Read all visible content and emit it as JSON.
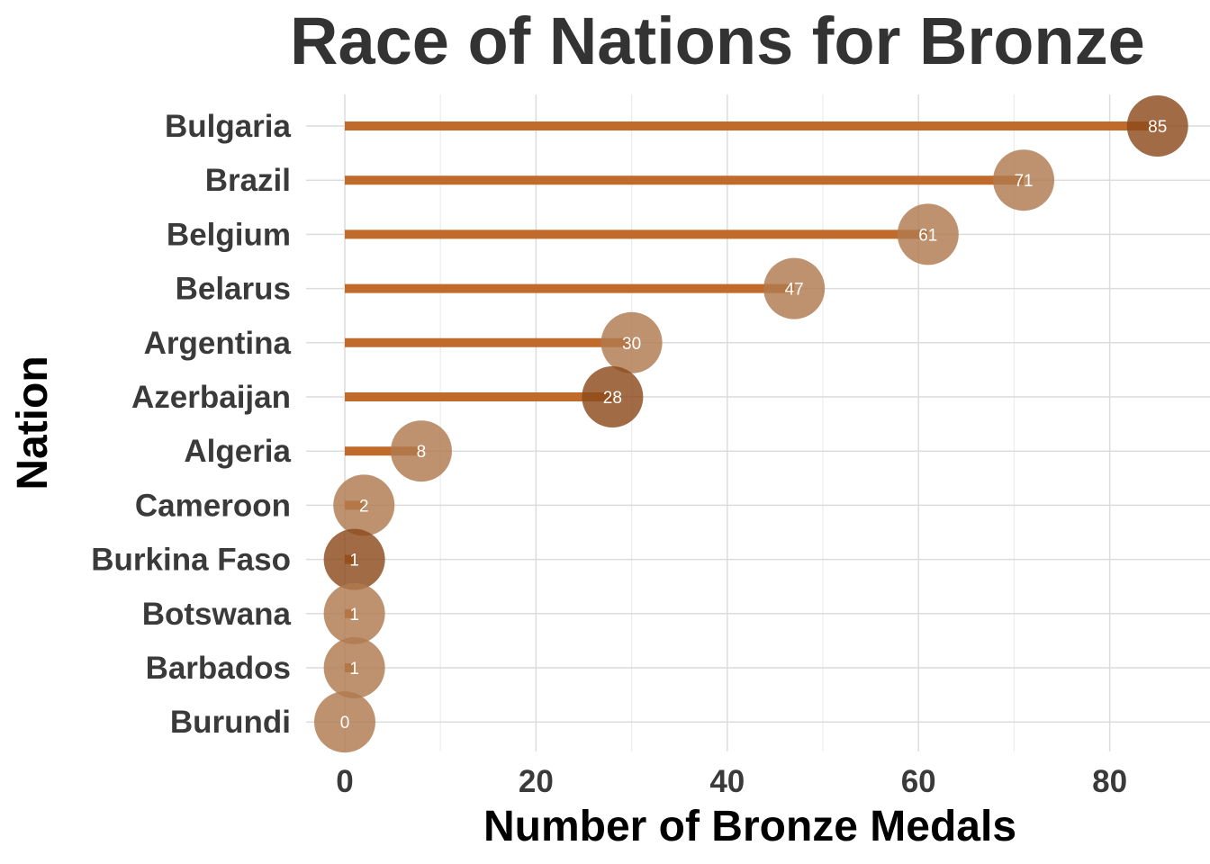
{
  "chart_data": {
    "type": "lollipop",
    "title": "Race of Nations for Bronze",
    "xlabel": "Number of Bronze Medals",
    "ylabel": "Nation",
    "xlim": [
      -5,
      90
    ],
    "xticks": [
      0,
      20,
      40,
      60,
      80
    ],
    "xtick_labels": [
      "0",
      "20",
      "40",
      "60",
      "80"
    ],
    "grid": true,
    "legend": "none",
    "categories": [
      "Bulgaria",
      "Brazil",
      "Belgium",
      "Belarus",
      "Argentina",
      "Azerbaijan",
      "Algeria",
      "Cameroon",
      "Burkina Faso",
      "Botswana",
      "Barbados",
      "Burundi"
    ],
    "values": [
      85,
      71,
      61,
      47,
      30,
      28,
      8,
      2,
      1,
      1,
      1,
      0
    ],
    "value_labels": [
      "85",
      "71",
      "61",
      "47",
      "30",
      "28",
      "8",
      "2",
      "1",
      "1",
      "1",
      "0"
    ],
    "highlighted": [
      "Bulgaria",
      "Azerbaijan",
      "Burkina Faso"
    ],
    "colors": {
      "stem": "#c06a2b",
      "point": "#b07a4f",
      "point_highlight": "#8b4a1c",
      "point_opacity": 0.82
    }
  }
}
